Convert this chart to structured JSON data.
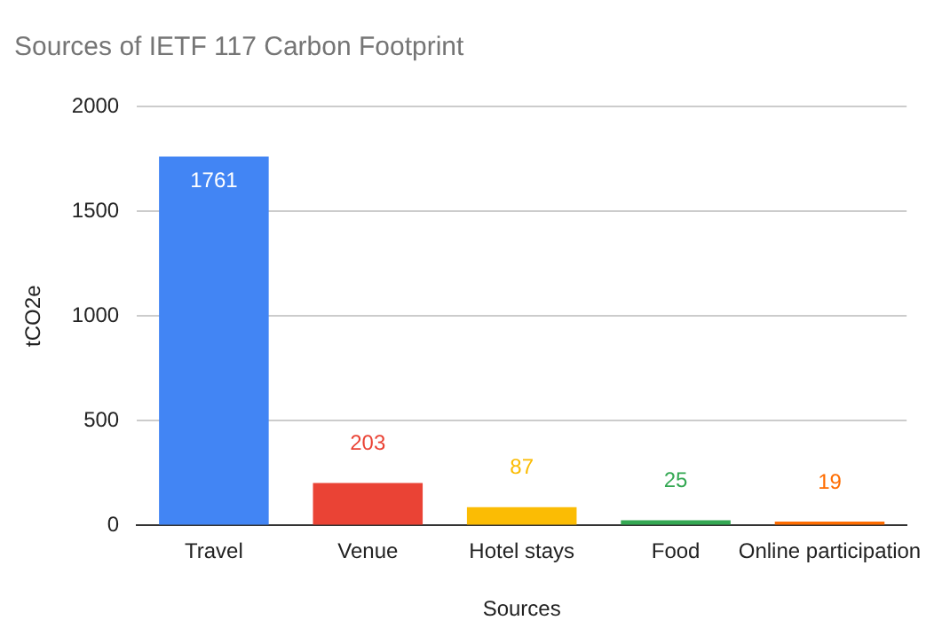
{
  "chart_data": {
    "type": "bar",
    "title": "Sources of IETF 117 Carbon Footprint",
    "xlabel": "Sources",
    "ylabel": "tCO2e",
    "categories": [
      "Travel",
      "Venue",
      "Hotel stays",
      "Food",
      "Online participation"
    ],
    "values": [
      1761,
      203,
      87,
      25,
      19
    ],
    "colors": [
      "#4285f4",
      "#ea4335",
      "#fbbc04",
      "#34a853",
      "#ff6d01"
    ],
    "ylim": [
      0,
      2000
    ],
    "yticks": [
      0,
      500,
      1000,
      1500,
      2000
    ],
    "grid": "y",
    "data_labels": true,
    "legend": false
  }
}
